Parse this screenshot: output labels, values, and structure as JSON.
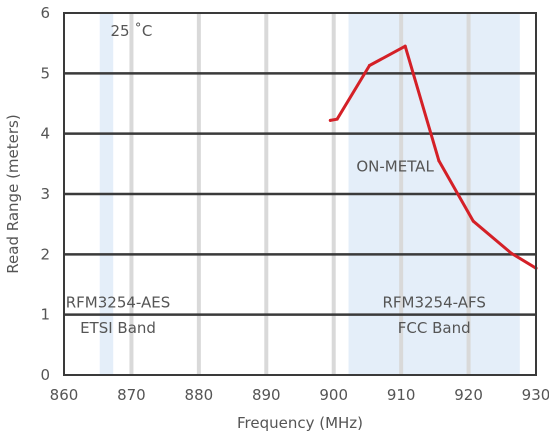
{
  "chart_data": {
    "type": "line",
    "xlabel": "Frequency (MHz)",
    "ylabel": "Read Range (meters)",
    "xlim": [
      860,
      930
    ],
    "ylim": [
      0,
      6
    ],
    "x_ticks": [
      860,
      870,
      880,
      890,
      900,
      910,
      920,
      930
    ],
    "y_ticks": [
      0,
      1,
      2,
      3,
      4,
      5,
      6
    ],
    "grid": "major horizontal dark lines and major vertical light lines",
    "series": [
      {
        "color": "#d42027",
        "x": [
          899.5,
          900.5,
          905.3,
          910.6,
          915.6,
          920.7,
          926.3,
          930.0
        ],
        "y": [
          4.22,
          4.24,
          5.13,
          5.45,
          3.55,
          2.55,
          2.02,
          1.77
        ]
      }
    ],
    "bands": [
      {
        "x0": 865.3,
        "x1": 867.3,
        "color": "#e4eef9",
        "line1": "RFM3254-AES",
        "line2": "ETSI Band"
      },
      {
        "x0": 902.2,
        "x1": 927.6,
        "color": "#e4eef9",
        "line1": "RFM3254-AFS",
        "line2": "FCC Band"
      }
    ],
    "annotations": [
      {
        "text": "25 ˚C",
        "x": 870,
        "y": 5.62
      },
      {
        "text": "ON-METAL",
        "x": 909.1,
        "y": 3.37
      }
    ],
    "colors": {
      "frame": "#3a3a3a",
      "h_grid": "#3a3a3a",
      "v_grid": "#d9d9d9",
      "text": "#555555"
    }
  }
}
